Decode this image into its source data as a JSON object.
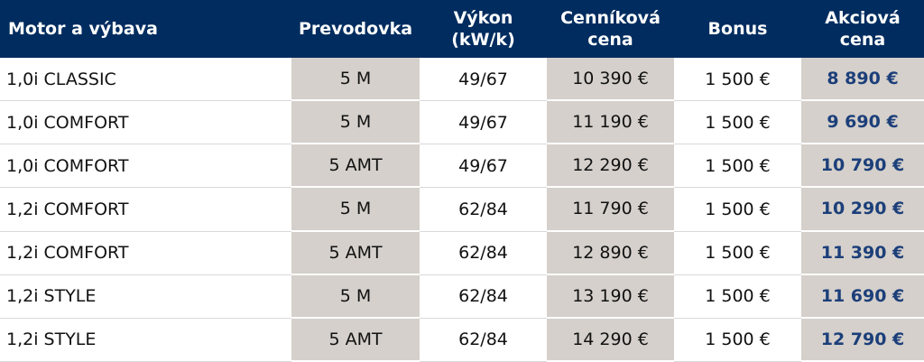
{
  "table": {
    "header": [
      [
        "Motor a výbava"
      ],
      [
        "Prevodovka"
      ],
      [
        "Výkon",
        "(kW/k)"
      ],
      [
        "Cenníková",
        "cena"
      ],
      [
        "Bonus"
      ],
      [
        "Akciová",
        "cena"
      ]
    ],
    "rows": [
      [
        "1,0i CLASSIC",
        "5 M",
        "49/67",
        "10 390 €",
        "1 500 €",
        "8 890 €"
      ],
      [
        "1,0i COMFORT",
        "5 M",
        "49/67",
        "11 190 €",
        "1 500 €",
        "9 690 €"
      ],
      [
        "1,0i COMFORT",
        "5 AMT",
        "49/67",
        "12 290 €",
        "1 500 €",
        "10 790 €"
      ],
      [
        "1,2i COMFORT",
        "5 M",
        "62/84",
        "11 790 €",
        "1 500 €",
        "10 290 €"
      ],
      [
        "1,2i COMFORT",
        "5 AMT",
        "62/84",
        "12 890 €",
        "1 500 €",
        "11 390 €"
      ],
      [
        "1,2i STYLE",
        "5 M",
        "62/84",
        "13 190 €",
        "1 500 €",
        "11 690 €"
      ],
      [
        "1,2i STYLE",
        "5 AMT",
        "62/84",
        "14 290 €",
        "1 500 €",
        "12 790 €"
      ]
    ]
  }
}
